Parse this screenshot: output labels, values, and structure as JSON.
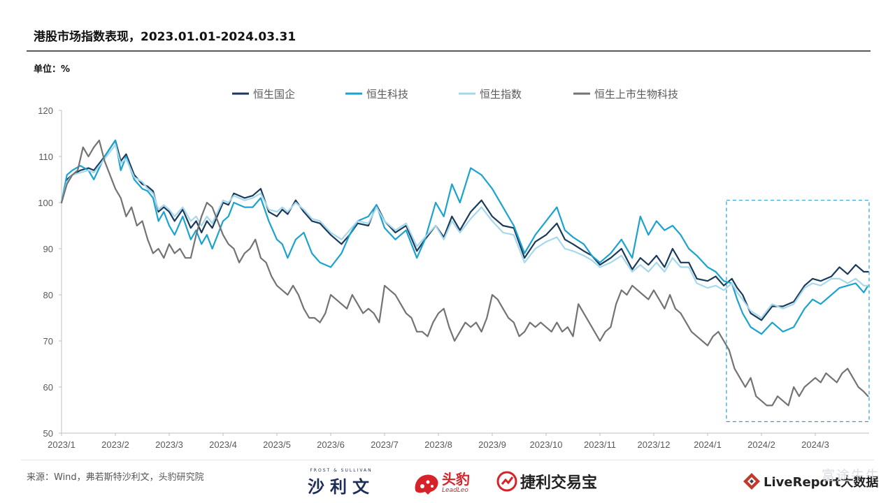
{
  "header": {
    "title": "港股市场指数表现，2023.01.01-2024.03.31",
    "unit": "单位：%"
  },
  "footer": {
    "source": "来源：Wind，弗若斯特沙利文，头豹研究院",
    "logos": {
      "frost_small": "FROST & SULLIVAN",
      "frost_cn": "沙利文",
      "leadleo_cn": "头豹",
      "leadleo_en": "LeadLeo",
      "jieli_cn": "捷利交易宝",
      "livereport_en": "LiveReport",
      "livereport_cn": "大数据",
      "watermark": "富途牛牛"
    }
  },
  "chart_data": {
    "type": "line",
    "title": "港股市场指数表现，2023.01.01-2024.03.31",
    "ylabel": "单位：%",
    "ylim": [
      50,
      120
    ],
    "yticks": [
      50,
      60,
      70,
      80,
      90,
      100,
      110,
      120
    ],
    "xlim": [
      0,
      15
    ],
    "x_tick_labels": [
      "2023/1",
      "2023/2",
      "2023/3",
      "2023/4",
      "2023/5",
      "2023/6",
      "2023/7",
      "2023/8",
      "2023/9",
      "2023/10",
      "2023/11",
      "2023/12",
      "2024/1",
      "2024/2",
      "2024/3"
    ],
    "x_unit": "months since 2023/1",
    "legend_position": "top-center",
    "highlight_box": {
      "x_range": [
        12.35,
        15.0
      ],
      "y_range": [
        52.5,
        100.5
      ],
      "style": "dashed",
      "color": "#2aa0cc"
    },
    "series": [
      {
        "name": "恒生国企",
        "color": "#1a3a5c",
        "x": [
          0.0,
          0.1,
          0.2,
          0.35,
          0.5,
          0.6,
          0.8,
          1.0,
          1.1,
          1.2,
          1.35,
          1.5,
          1.6,
          1.7,
          1.8,
          1.9,
          2.0,
          2.1,
          2.25,
          2.4,
          2.5,
          2.6,
          2.7,
          2.8,
          3.0,
          3.1,
          3.2,
          3.4,
          3.55,
          3.7,
          3.85,
          4.0,
          4.1,
          4.2,
          4.35,
          4.5,
          4.65,
          4.8,
          5.0,
          5.2,
          5.35,
          5.5,
          5.7,
          5.85,
          6.0,
          6.2,
          6.4,
          6.6,
          6.75,
          6.95,
          7.1,
          7.25,
          7.4,
          7.6,
          7.8,
          8.0,
          8.2,
          8.4,
          8.6,
          8.8,
          9.0,
          9.2,
          9.35,
          9.5,
          9.7,
          9.85,
          10.0,
          10.2,
          10.4,
          10.6,
          10.75,
          10.9,
          11.05,
          11.2,
          11.35,
          11.5,
          11.65,
          11.8,
          12.0,
          12.15,
          12.3,
          12.45,
          12.55,
          12.65,
          12.8,
          13.0,
          13.2,
          13.4,
          13.6,
          13.8,
          13.95,
          14.1,
          14.3,
          14.45,
          14.6,
          14.75,
          14.9,
          14.98
        ],
        "values": [
          100,
          105,
          106,
          107,
          107.5,
          107,
          110,
          113.5,
          109,
          110.5,
          106,
          104,
          103.5,
          102.5,
          98,
          99,
          98,
          96,
          98.5,
          94.5,
          96,
          93.5,
          96,
          94.5,
          100,
          99.5,
          102,
          101,
          101.5,
          103,
          98,
          97,
          98.5,
          97.5,
          100.5,
          98,
          96,
          95.5,
          93,
          91,
          93,
          95.5,
          95,
          99.5,
          96,
          93.5,
          95,
          89.5,
          92,
          95,
          92.5,
          97,
          94,
          98,
          100.5,
          97,
          95,
          94.5,
          88,
          91.5,
          93,
          95.5,
          92,
          91,
          89.5,
          88.5,
          86.5,
          88,
          90,
          85.5,
          88,
          86.5,
          88.5,
          86,
          90,
          87,
          87,
          83.5,
          83,
          84,
          82,
          83.5,
          81.5,
          80,
          76,
          74.5,
          77.5,
          77.5,
          78.5,
          82,
          83.5,
          83,
          84,
          86,
          84.5,
          86.5,
          85,
          85
        ]
      },
      {
        "name": "恒生科技",
        "color": "#1aa3d1",
        "x": [
          0.0,
          0.1,
          0.2,
          0.35,
          0.5,
          0.6,
          0.8,
          1.0,
          1.1,
          1.2,
          1.35,
          1.5,
          1.6,
          1.7,
          1.8,
          1.9,
          2.0,
          2.1,
          2.25,
          2.4,
          2.5,
          2.6,
          2.7,
          2.8,
          3.0,
          3.1,
          3.2,
          3.4,
          3.55,
          3.7,
          3.85,
          4.0,
          4.1,
          4.2,
          4.35,
          4.5,
          4.65,
          4.8,
          5.0,
          5.2,
          5.35,
          5.5,
          5.7,
          5.85,
          6.0,
          6.2,
          6.4,
          6.6,
          6.75,
          6.95,
          7.1,
          7.25,
          7.4,
          7.6,
          7.8,
          8.0,
          8.2,
          8.4,
          8.6,
          8.8,
          9.0,
          9.2,
          9.35,
          9.5,
          9.7,
          9.85,
          10.0,
          10.2,
          10.4,
          10.6,
          10.75,
          10.9,
          11.05,
          11.2,
          11.35,
          11.5,
          11.65,
          11.8,
          12.0,
          12.15,
          12.3,
          12.45,
          12.55,
          12.65,
          12.8,
          13.0,
          13.2,
          13.4,
          13.6,
          13.8,
          13.95,
          14.1,
          14.3,
          14.45,
          14.6,
          14.75,
          14.9,
          14.98
        ],
        "values": [
          100,
          106,
          107,
          108,
          107,
          105,
          110,
          113.5,
          107,
          110,
          105,
          103,
          102.5,
          101,
          96,
          98,
          95,
          93,
          97,
          92,
          94,
          91,
          93,
          90,
          96,
          97,
          100,
          99,
          99,
          101,
          96,
          92,
          91,
          88,
          92,
          93.5,
          89,
          87,
          86,
          89,
          93,
          96,
          97,
          99.5,
          94.5,
          92,
          94,
          88,
          92,
          100,
          97,
          104,
          100,
          107.5,
          106,
          103,
          99,
          95,
          89,
          93,
          96,
          99,
          94,
          92.5,
          91,
          88.5,
          87,
          89,
          92,
          88,
          97,
          93,
          96,
          94,
          95,
          93,
          90,
          88.5,
          86,
          85,
          83,
          82.5,
          79,
          76,
          73,
          71.5,
          74,
          72,
          73,
          77,
          79,
          78,
          80,
          81.5,
          82,
          82.5,
          80.5,
          82
        ]
      },
      {
        "name": "恒生指数",
        "color": "#a6d8ec",
        "x": [
          0.0,
          0.1,
          0.2,
          0.35,
          0.5,
          0.6,
          0.8,
          1.0,
          1.1,
          1.2,
          1.35,
          1.5,
          1.6,
          1.7,
          1.8,
          1.9,
          2.0,
          2.1,
          2.25,
          2.4,
          2.5,
          2.6,
          2.7,
          2.8,
          3.0,
          3.1,
          3.2,
          3.4,
          3.55,
          3.7,
          3.85,
          4.0,
          4.1,
          4.2,
          4.35,
          4.5,
          4.65,
          4.8,
          5.0,
          5.2,
          5.35,
          5.5,
          5.7,
          5.85,
          6.0,
          6.2,
          6.4,
          6.6,
          6.75,
          6.95,
          7.1,
          7.25,
          7.4,
          7.6,
          7.8,
          8.0,
          8.2,
          8.4,
          8.6,
          8.8,
          9.0,
          9.2,
          9.35,
          9.5,
          9.7,
          9.85,
          10.0,
          10.2,
          10.4,
          10.6,
          10.75,
          10.9,
          11.05,
          11.2,
          11.35,
          11.5,
          11.65,
          11.8,
          12.0,
          12.15,
          12.3,
          12.45,
          12.55,
          12.65,
          12.8,
          13.0,
          13.2,
          13.4,
          13.6,
          13.8,
          13.95,
          14.1,
          14.3,
          14.45,
          14.6,
          14.75,
          14.9,
          14.98
        ],
        "values": [
          100,
          104.5,
          106,
          106.5,
          107,
          106.5,
          109.5,
          112.5,
          108.5,
          109.5,
          105.5,
          104.5,
          103,
          102,
          98.5,
          99.5,
          98.5,
          97,
          99,
          96,
          97,
          95,
          97,
          95.5,
          100.5,
          100,
          101.5,
          100.5,
          101,
          102,
          98.5,
          98,
          99,
          98,
          100,
          98.5,
          96.5,
          96,
          93.5,
          92,
          94,
          96,
          95.5,
          99,
          96,
          94,
          95.5,
          90.5,
          92.5,
          95,
          92,
          96,
          93.5,
          96.5,
          99,
          96,
          93.5,
          93,
          87,
          90,
          91.5,
          92.5,
          90,
          89.5,
          88.5,
          87.5,
          86,
          87,
          88.5,
          85,
          86.5,
          85,
          87,
          85,
          88,
          86,
          86,
          82.5,
          81.5,
          82,
          81,
          82.5,
          80.5,
          79,
          76.5,
          75,
          78,
          77,
          78,
          81.5,
          82.5,
          82,
          83.5,
          83.5,
          82.5,
          83.5,
          82,
          82
        ]
      },
      {
        "name": "恒生上市生物科技",
        "color": "#737373",
        "x": [
          0.0,
          0.1,
          0.2,
          0.3,
          0.4,
          0.5,
          0.6,
          0.7,
          0.8,
          0.9,
          1.0,
          1.1,
          1.2,
          1.3,
          1.4,
          1.5,
          1.6,
          1.7,
          1.8,
          1.9,
          2.0,
          2.1,
          2.2,
          2.3,
          2.4,
          2.5,
          2.6,
          2.7,
          2.8,
          2.9,
          3.0,
          3.1,
          3.2,
          3.3,
          3.4,
          3.5,
          3.6,
          3.7,
          3.8,
          3.9,
          4.0,
          4.1,
          4.2,
          4.3,
          4.4,
          4.5,
          4.6,
          4.7,
          4.8,
          4.9,
          5.0,
          5.1,
          5.2,
          5.3,
          5.4,
          5.5,
          5.6,
          5.7,
          5.8,
          5.9,
          6.0,
          6.1,
          6.2,
          6.3,
          6.4,
          6.5,
          6.6,
          6.7,
          6.8,
          6.9,
          7.0,
          7.1,
          7.2,
          7.3,
          7.4,
          7.5,
          7.6,
          7.7,
          7.8,
          7.9,
          8.0,
          8.1,
          8.2,
          8.3,
          8.4,
          8.5,
          8.6,
          8.7,
          8.8,
          8.9,
          9.0,
          9.1,
          9.2,
          9.3,
          9.4,
          9.5,
          9.6,
          9.7,
          9.8,
          9.9,
          10.0,
          10.1,
          10.2,
          10.3,
          10.4,
          10.5,
          10.6,
          10.7,
          10.8,
          10.9,
          11.0,
          11.1,
          11.2,
          11.3,
          11.4,
          11.5,
          11.6,
          11.7,
          11.8,
          11.9,
          12.0,
          12.1,
          12.2,
          12.3,
          12.4,
          12.5,
          12.6,
          12.7,
          12.8,
          12.9,
          13.0,
          13.1,
          13.2,
          13.3,
          13.4,
          13.5,
          13.6,
          13.7,
          13.8,
          13.9,
          14.0,
          14.1,
          14.2,
          14.3,
          14.4,
          14.5,
          14.6,
          14.7,
          14.8,
          14.9,
          14.98
        ],
        "values": [
          100,
          104,
          106,
          107,
          112,
          110,
          112,
          113.5,
          109,
          106,
          103,
          101,
          97,
          99,
          95,
          96,
          92,
          89,
          90,
          88,
          91,
          89,
          90,
          88,
          88,
          93,
          97,
          100,
          99,
          96,
          93,
          91,
          90,
          87,
          89,
          90,
          92,
          88,
          87,
          84,
          82,
          81,
          80,
          82,
          80,
          77,
          75,
          75,
          74,
          76,
          80,
          79,
          78,
          77,
          80,
          78,
          76,
          77,
          76,
          74,
          82,
          81,
          80,
          78,
          76,
          75,
          72,
          72,
          71,
          74,
          76,
          77,
          73,
          70,
          72,
          74,
          73,
          74,
          72,
          75,
          80,
          79,
          77,
          75,
          74,
          71,
          72,
          74,
          73,
          74,
          73,
          72,
          74,
          72,
          73,
          71,
          78,
          76,
          74,
          72,
          70,
          72,
          73,
          78,
          81,
          80,
          82,
          81,
          80,
          79,
          81,
          79,
          77,
          80,
          77,
          76,
          74,
          72,
          71,
          70,
          69,
          71,
          72,
          70,
          68,
          64,
          62,
          60,
          62,
          58,
          57,
          56,
          56,
          58,
          57,
          56,
          60,
          58,
          60,
          61,
          62,
          61,
          63,
          62,
          61,
          63,
          64,
          62,
          60,
          59,
          58
        ]
      }
    ]
  }
}
